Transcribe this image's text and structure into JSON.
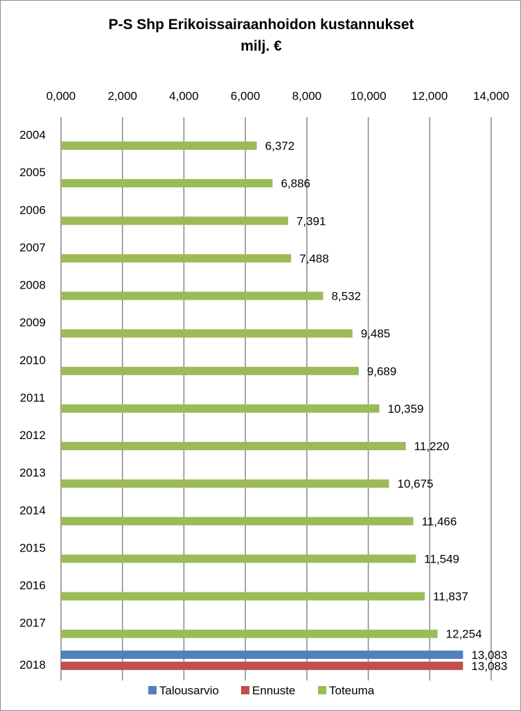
{
  "chart_data": {
    "type": "bar",
    "orientation": "horizontal",
    "title": "P-S Shp Erikoissairaanhoidon  kustannukset",
    "subtitle": "milj. €",
    "xlim": [
      0,
      14
    ],
    "x_ticks": [
      "0,000",
      "2,000",
      "4,000",
      "6,000",
      "8,000",
      "10,000",
      "12,000",
      "14,000"
    ],
    "x_axis_position": "top",
    "grid": "vertical",
    "categories": [
      "2004",
      "2005",
      "2006",
      "2007",
      "2008",
      "2009",
      "2010",
      "2011",
      "2012",
      "2013",
      "2014",
      "2015",
      "2016",
      "2017",
      "2018"
    ],
    "series": [
      {
        "name": "Talousarvio",
        "color": "#4f81bd",
        "values": [
          null,
          null,
          null,
          null,
          null,
          null,
          null,
          null,
          null,
          null,
          null,
          null,
          null,
          null,
          13.083
        ],
        "labels": [
          "",
          "",
          "",
          "",
          "",
          "",
          "",
          "",
          "",
          "",
          "",
          "",
          "",
          "",
          "13,083"
        ]
      },
      {
        "name": "Ennuste",
        "color": "#c0504d",
        "values": [
          null,
          null,
          null,
          null,
          null,
          null,
          null,
          null,
          null,
          null,
          null,
          null,
          null,
          null,
          13.083
        ],
        "labels": [
          "",
          "",
          "",
          "",
          "",
          "",
          "",
          "",
          "",
          "",
          "",
          "",
          "",
          "",
          "13,083"
        ]
      },
      {
        "name": "Toteuma",
        "color": "#9bbb59",
        "values": [
          6.372,
          6.886,
          7.391,
          7.488,
          8.532,
          9.485,
          9.689,
          10.359,
          11.22,
          10.675,
          11.466,
          11.549,
          11.837,
          12.254,
          null
        ],
        "labels": [
          "6,372",
          "6,886",
          "7,391",
          "7,488",
          "8,532",
          "9,485",
          "9,689",
          "10,359",
          "11,220",
          "10,675",
          "11,466",
          "11,549",
          "11,837",
          "12,254",
          ""
        ]
      }
    ],
    "legend": {
      "placement": "bottom",
      "entries": [
        "Talousarvio",
        "Ennuste",
        "Toteuma"
      ]
    }
  }
}
